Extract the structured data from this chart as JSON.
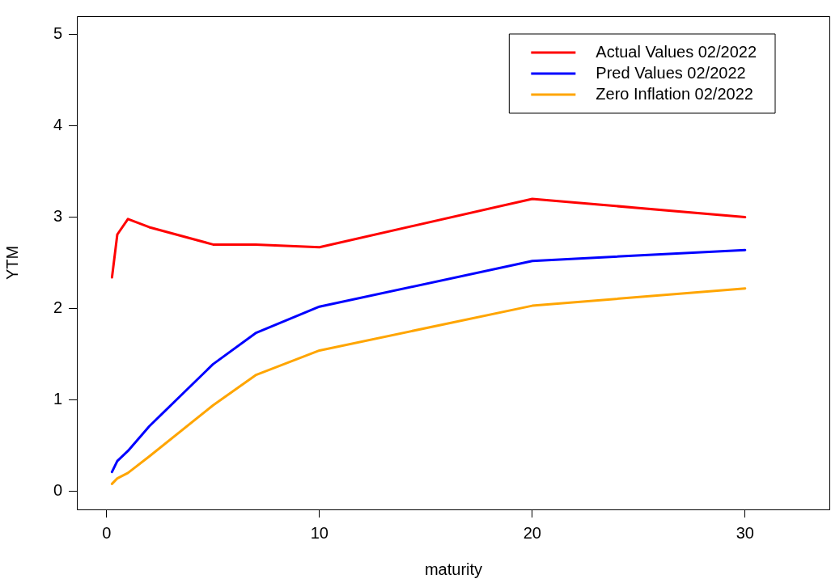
{
  "chart_data": {
    "type": "line",
    "xlabel": "maturity",
    "ylabel": "YTM",
    "xlim": [
      -1.4,
      34
    ],
    "ylim": [
      -0.2,
      5.2
    ],
    "xticks": [
      0,
      10,
      20,
      30
    ],
    "yticks": [
      0,
      1,
      2,
      3,
      4,
      5
    ],
    "grid": false,
    "legend": "top right",
    "marker": "none",
    "line_style": "solid",
    "x": [
      0.25,
      0.5,
      1,
      2,
      5,
      7,
      10,
      20,
      30
    ],
    "series": [
      {
        "name": "Actual Values 02/2022",
        "color": "#ff0000",
        "values": [
          2.34,
          2.81,
          2.98,
          2.89,
          2.7,
          2.7,
          2.67,
          3.2,
          3.0
        ]
      },
      {
        "name": "Pred Values 02/2022",
        "color": "#0000ff",
        "values": [
          0.21,
          0.33,
          0.44,
          0.71,
          1.39,
          1.73,
          2.02,
          2.52,
          2.64
        ]
      },
      {
        "name": "Zero Inflation 02/2022",
        "color": "#ffa500",
        "values": [
          0.08,
          0.14,
          0.2,
          0.38,
          0.94,
          1.27,
          1.54,
          2.03,
          2.22
        ]
      }
    ]
  }
}
